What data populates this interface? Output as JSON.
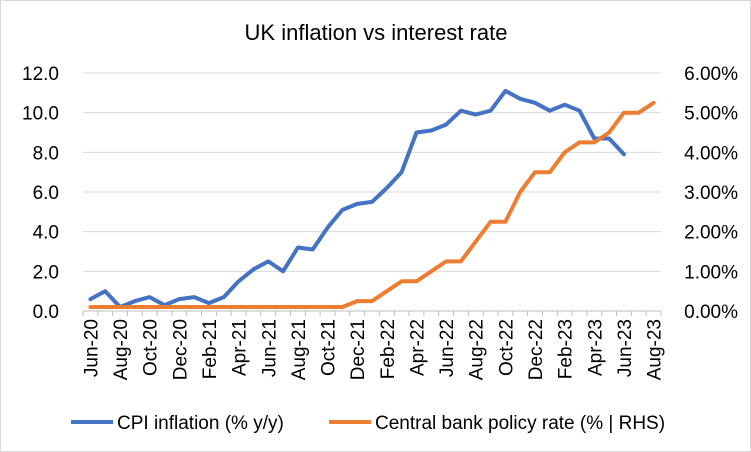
{
  "chart_data": {
    "type": "line",
    "title": "UK inflation vs interest rate",
    "x": [
      "Jun-20",
      "Jul-20",
      "Aug-20",
      "Sep-20",
      "Oct-20",
      "Nov-20",
      "Dec-20",
      "Jan-21",
      "Feb-21",
      "Mar-21",
      "Apr-21",
      "May-21",
      "Jun-21",
      "Jul-21",
      "Aug-21",
      "Sep-21",
      "Oct-21",
      "Nov-21",
      "Dec-21",
      "Jan-22",
      "Feb-22",
      "Mar-22",
      "Apr-22",
      "May-22",
      "Jun-22",
      "Jul-22",
      "Aug-22",
      "Sep-22",
      "Oct-22",
      "Nov-22",
      "Dec-22",
      "Jan-23",
      "Feb-23",
      "Mar-23",
      "Apr-23",
      "May-23",
      "Jun-23",
      "Jul-23",
      "Aug-23"
    ],
    "x_tick_labels": [
      "Jun-20",
      "Aug-20",
      "Oct-20",
      "Dec-20",
      "Feb-21",
      "Apr-21",
      "Jun-21",
      "Aug-21",
      "Oct-21",
      "Dec-21",
      "Feb-22",
      "Apr-22",
      "Jun-22",
      "Aug-22",
      "Oct-22",
      "Dec-22",
      "Feb-23",
      "Apr-23",
      "Jun-23",
      "Aug-23"
    ],
    "y_left": {
      "ylim": [
        0,
        12
      ],
      "ticks": [
        "0.0",
        "2.0",
        "4.0",
        "6.0",
        "8.0",
        "10.0",
        "12.0"
      ]
    },
    "y_right": {
      "ylim": [
        0,
        6
      ],
      "ticks": [
        "0.00%",
        "1.00%",
        "2.00%",
        "3.00%",
        "4.00%",
        "5.00%",
        "6.00%"
      ]
    },
    "grid": true,
    "legend_position": "bottom",
    "series": [
      {
        "name": "CPI inflation (% y/y)",
        "axis": "left",
        "color": "#4472C4",
        "values": [
          0.6,
          1.0,
          0.2,
          0.5,
          0.7,
          0.3,
          0.6,
          0.7,
          0.4,
          0.7,
          1.5,
          2.1,
          2.5,
          2.0,
          3.2,
          3.1,
          4.2,
          5.1,
          5.4,
          5.5,
          6.2,
          7.0,
          9.0,
          9.1,
          9.4,
          10.1,
          9.9,
          10.1,
          11.1,
          10.7,
          10.5,
          10.1,
          10.4,
          10.1,
          8.7,
          8.7,
          7.9,
          null,
          null
        ]
      },
      {
        "name": "Central bank policy rate (% | RHS)",
        "axis": "right",
        "color": "#ED7D31",
        "values": [
          0.1,
          0.1,
          0.1,
          0.1,
          0.1,
          0.1,
          0.1,
          0.1,
          0.1,
          0.1,
          0.1,
          0.1,
          0.1,
          0.1,
          0.1,
          0.1,
          0.1,
          0.1,
          0.25,
          0.25,
          0.5,
          0.75,
          0.75,
          1.0,
          1.25,
          1.25,
          1.75,
          2.25,
          2.25,
          3.0,
          3.5,
          3.5,
          4.0,
          4.25,
          4.25,
          4.5,
          5.0,
          5.0,
          5.25
        ]
      }
    ]
  }
}
